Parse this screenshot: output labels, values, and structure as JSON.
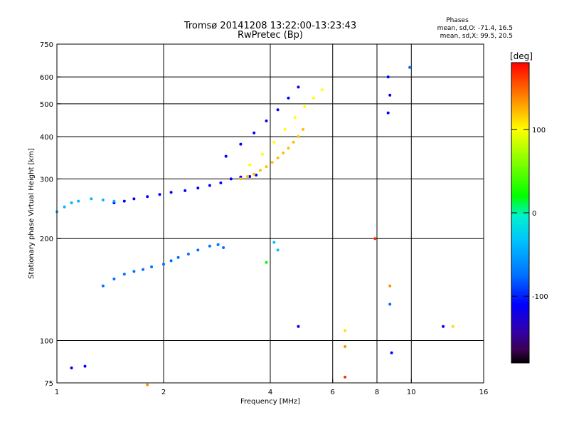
{
  "chart_data": {
    "type": "scatter",
    "title": "Tromsø 20141208 13:22:00-13:23:43",
    "subtitle": "RwPretec (Bp)",
    "stats": {
      "title": "Phases",
      "line_o": "mean, sd,O: -71.4, 16.5",
      "line_x": "mean, sd,X:  99.5, 20.5"
    },
    "xlabel": "Frequency [MHz]",
    "ylabel": "Stationary phase Virtual Height [km]",
    "xscale": "log",
    "yscale": "log",
    "xlim": [
      1,
      16
    ],
    "ylim": [
      75,
      750
    ],
    "grid": true,
    "x_ticks": [
      1,
      2,
      4,
      6,
      8,
      10,
      16
    ],
    "x_tick_labels": [
      "1",
      "2",
      "4",
      "6",
      "8",
      "10",
      "16"
    ],
    "x_grid": [
      2,
      4,
      6,
      8,
      10
    ],
    "y_ticks": [
      75,
      100,
      200,
      300,
      400,
      500,
      600,
      750
    ],
    "y_tick_labels": [
      "75",
      "100",
      "200",
      "300",
      "400",
      "500",
      "600",
      "750"
    ],
    "y_grid": [
      100,
      200,
      300,
      400,
      500,
      600
    ],
    "colorbar": {
      "label": "[deg]",
      "range": [
        -180,
        180
      ],
      "ticks": [
        100,
        0,
        -100
      ],
      "tick_labels": [
        "100",
        "0",
        "-100"
      ],
      "stops": [
        {
          "v": -180,
          "color": "#000000"
        },
        {
          "v": -165,
          "color": "#3a0050"
        },
        {
          "v": -140,
          "color": "#3000b0"
        },
        {
          "v": -110,
          "color": "#0000ff"
        },
        {
          "v": -75,
          "color": "#0070ff"
        },
        {
          "v": -35,
          "color": "#00c0ff"
        },
        {
          "v": -5,
          "color": "#00f0d0"
        },
        {
          "v": 20,
          "color": "#00ff00"
        },
        {
          "v": 60,
          "color": "#80ff00"
        },
        {
          "v": 100,
          "color": "#ffff00"
        },
        {
          "v": 135,
          "color": "#ff9000"
        },
        {
          "v": 165,
          "color": "#ff3000"
        },
        {
          "v": 180,
          "color": "#ff0000"
        }
      ]
    },
    "series": [
      {
        "role": "lower trace",
        "freq": [
          1.35,
          1.45,
          1.55,
          1.65,
          1.75,
          1.85,
          2.0,
          2.1,
          2.2,
          2.35,
          2.5,
          2.7,
          2.85,
          2.95
        ],
        "height": [
          145,
          152,
          157,
          160,
          162,
          165,
          168,
          172,
          176,
          180,
          185,
          190,
          192,
          188
        ],
        "phase": -75
      },
      {
        "role": "F1 trace",
        "freq": [
          1.45,
          1.55,
          1.65,
          1.8,
          1.95,
          2.1,
          2.3,
          2.5,
          2.7,
          2.9,
          3.1,
          3.3,
          3.5,
          3.65
        ],
        "height": [
          255,
          258,
          262,
          266,
          270,
          274,
          277,
          282,
          287,
          292,
          300,
          304,
          305,
          308
        ],
        "phase": -110
      },
      {
        "role": "F1 trace",
        "freq": [
          1.0,
          1.05,
          1.1,
          1.15,
          1.25,
          1.35,
          1.45
        ],
        "height": [
          240,
          248,
          255,
          258,
          262,
          260,
          258
        ],
        "phase": -40
      },
      {
        "role": "F2 trace",
        "freq": [
          3.3,
          3.45,
          3.6,
          3.75,
          3.9,
          4.05,
          4.2,
          4.35,
          4.5,
          4.65,
          4.8,
          4.95
        ],
        "height": [
          300,
          305,
          310,
          318,
          326,
          336,
          346,
          358,
          370,
          385,
          400,
          420
        ],
        "phase": 120
      },
      {
        "role": "F2 trace",
        "freq": [
          3.5,
          3.8,
          4.1,
          4.4,
          4.7,
          5.0,
          5.3,
          5.6
        ],
        "height": [
          330,
          355,
          385,
          420,
          455,
          490,
          520,
          550
        ],
        "phase": 100
      },
      {
        "role": "F2 trace",
        "freq": [
          3.0,
          3.3,
          3.6,
          3.9,
          4.2,
          4.5,
          4.8
        ],
        "height": [
          350,
          380,
          410,
          445,
          480,
          520,
          560
        ],
        "phase": -110
      },
      {
        "role": "scattered points",
        "freq": [
          1.1,
          1.2,
          1.8,
          4.8,
          6.5,
          6.5,
          6.5,
          8.6,
          8.7,
          8.7,
          8.7,
          8.8,
          9.9,
          12.3,
          13.1,
          7.9,
          4.1,
          4.2,
          3.9,
          8.6
        ],
        "height": [
          83,
          84,
          74,
          110,
          107,
          96,
          78,
          600,
          530,
          145,
          128,
          92,
          640,
          110,
          110,
          200,
          195,
          185,
          170,
          470
        ],
        "phase": [
          -110,
          -110,
          135,
          -110,
          110,
          135,
          165,
          -110,
          -110,
          135,
          -75,
          -110,
          -75,
          -110,
          110,
          165,
          -35,
          -35,
          20,
          -110
        ]
      }
    ]
  }
}
